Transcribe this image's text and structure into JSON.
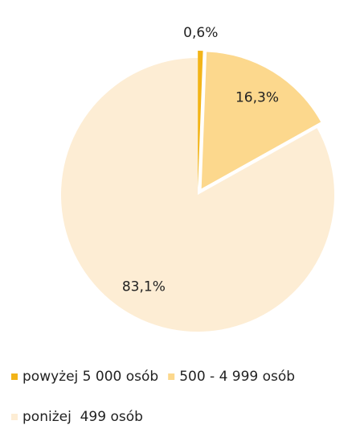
{
  "chart_data": {
    "type": "pie",
    "categories": [
      "powyżej 5 000 osób",
      "500 - 4 999 osób",
      "poniżej  499 osób"
    ],
    "values": [
      0.6,
      16.3,
      83.1
    ],
    "value_labels": [
      "0,6%",
      "16,3%",
      "83,1%"
    ],
    "colors": [
      "#f2b418",
      "#fcd88d",
      "#fdedd4"
    ]
  }
}
